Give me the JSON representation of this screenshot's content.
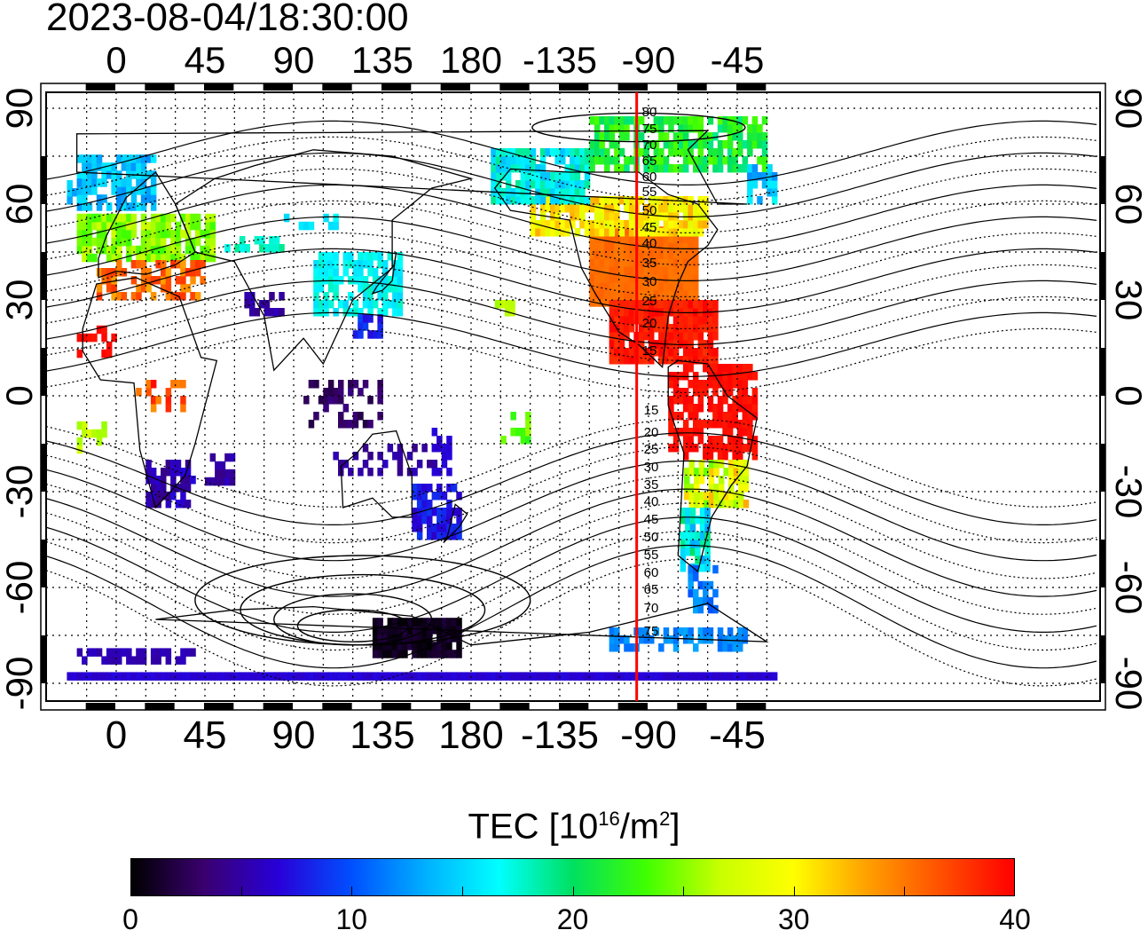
{
  "timestamp": "2023-08-04/18:30:00",
  "map": {
    "lon_ticks": [
      "0",
      "45",
      "90",
      "135",
      "180",
      "-135",
      "-90",
      "-45"
    ],
    "lat_ticks_left": [
      "90",
      "60",
      "30",
      "0",
      "-30",
      "-60",
      "-90"
    ],
    "lat_ticks_right": [
      "90",
      "60",
      "30",
      "0",
      "-30",
      "-60",
      "-90"
    ],
    "contour_labels_north": [
      "80",
      "75",
      "70",
      "65",
      "60",
      "55",
      "50",
      "45",
      "40",
      "35",
      "30",
      "25",
      "20",
      "15"
    ],
    "contour_labels_south": [
      "15",
      "20",
      "25",
      "30",
      "35",
      "40",
      "45",
      "50",
      "55",
      "60",
      "65",
      "70",
      "75"
    ],
    "terminator_longitude": -96
  },
  "colorbar": {
    "title_prefix": "TEC  [10",
    "title_exp": "16",
    "title_mid": "/m",
    "title_exp2": "2",
    "title_suffix": "]",
    "min": 0,
    "max": 40,
    "tick_labels": [
      "0",
      "10",
      "20",
      "30",
      "40"
    ],
    "colors": [
      "#000000",
      "#3a0070",
      "#2800d8",
      "#0050ff",
      "#00b0ff",
      "#00ffff",
      "#00e060",
      "#40ff00",
      "#c8ff00",
      "#ffff00",
      "#ffa000",
      "#ff5000",
      "#ff0000"
    ]
  }
}
